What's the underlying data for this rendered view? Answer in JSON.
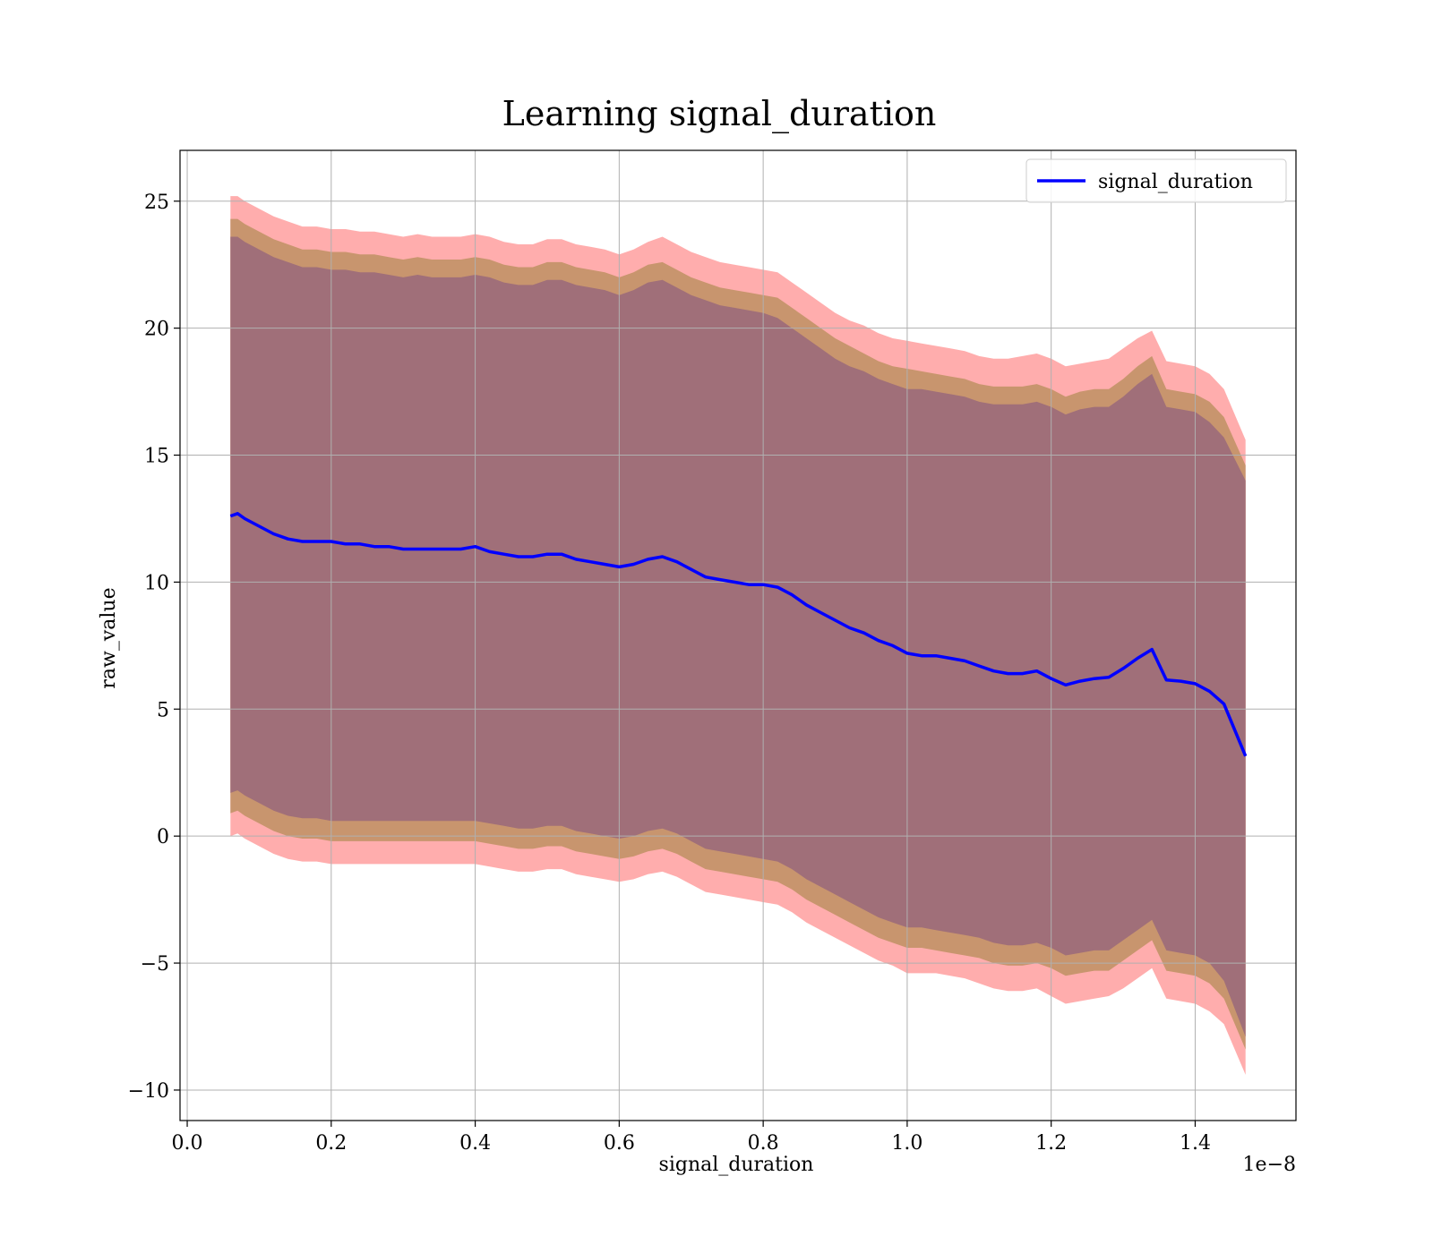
{
  "chart_data": {
    "type": "line",
    "title": "Learning signal_duration",
    "xlabel": "signal_duration",
    "ylabel": "raw_value",
    "x_offset_text": "1e−8",
    "x_tick_scale": 1e-08,
    "xlim": [
      -0.01,
      1.54
    ],
    "ylim": [
      -11.2,
      27.0
    ],
    "xticks": [
      0.0,
      0.2,
      0.4,
      0.6,
      0.8,
      1.0,
      1.2,
      1.4
    ],
    "xtick_labels": [
      "0.0",
      "0.2",
      "0.4",
      "0.6",
      "0.8",
      "1.0",
      "1.2",
      "1.4"
    ],
    "yticks": [
      -10,
      -5,
      0,
      5,
      10,
      15,
      20,
      25
    ],
    "ytick_labels": [
      "−10",
      "−5",
      "0",
      "5",
      "10",
      "15",
      "20",
      "25"
    ],
    "grid": true,
    "legend": {
      "placement": "top-right",
      "entries": [
        "signal_duration"
      ]
    },
    "colors": {
      "line": "#0000ff",
      "band_outer": "#ff9999",
      "band_middle": "#c8956e",
      "band_inner": "#a06f79",
      "grid": "#b0b0b0"
    },
    "x": [
      0.06,
      0.07,
      0.08,
      0.1,
      0.12,
      0.14,
      0.16,
      0.18,
      0.2,
      0.22,
      0.24,
      0.26,
      0.28,
      0.3,
      0.32,
      0.34,
      0.36,
      0.38,
      0.4,
      0.42,
      0.44,
      0.46,
      0.48,
      0.5,
      0.52,
      0.54,
      0.56,
      0.58,
      0.6,
      0.62,
      0.64,
      0.66,
      0.68,
      0.7,
      0.72,
      0.74,
      0.76,
      0.78,
      0.8,
      0.82,
      0.84,
      0.86,
      0.88,
      0.9,
      0.92,
      0.94,
      0.96,
      0.98,
      1.0,
      1.02,
      1.04,
      1.06,
      1.08,
      1.1,
      1.12,
      1.14,
      1.16,
      1.18,
      1.2,
      1.22,
      1.24,
      1.26,
      1.28,
      1.3,
      1.32,
      1.34,
      1.36,
      1.38,
      1.4,
      1.42,
      1.44,
      1.47
    ],
    "series": [
      {
        "name": "signal_duration",
        "values": [
          12.6,
          12.7,
          12.5,
          12.2,
          11.9,
          11.7,
          11.6,
          11.6,
          11.6,
          11.5,
          11.5,
          11.4,
          11.4,
          11.3,
          11.3,
          11.3,
          11.3,
          11.3,
          11.4,
          11.2,
          11.1,
          11.0,
          11.0,
          11.1,
          11.1,
          10.9,
          10.8,
          10.7,
          10.6,
          10.7,
          10.9,
          11.0,
          10.8,
          10.5,
          10.2,
          10.1,
          10.0,
          9.9,
          9.9,
          9.8,
          9.5,
          9.1,
          8.8,
          8.5,
          8.2,
          8.0,
          7.7,
          7.5,
          7.2,
          7.1,
          7.1,
          7.0,
          6.9,
          6.7,
          6.5,
          6.4,
          6.4,
          6.5,
          6.2,
          5.95,
          6.1,
          6.2,
          6.25,
          6.6,
          7.0,
          7.35,
          6.15,
          6.1,
          6.0,
          5.7,
          5.2,
          3.15
        ]
      }
    ],
    "bands": [
      {
        "level": "outer",
        "upper": [
          25.2,
          25.2,
          25.0,
          24.7,
          24.4,
          24.2,
          24.0,
          24.0,
          23.9,
          23.9,
          23.8,
          23.8,
          23.7,
          23.6,
          23.7,
          23.6,
          23.6,
          23.6,
          23.7,
          23.6,
          23.4,
          23.3,
          23.3,
          23.5,
          23.5,
          23.3,
          23.2,
          23.1,
          22.9,
          23.1,
          23.4,
          23.6,
          23.3,
          23.0,
          22.8,
          22.6,
          22.5,
          22.4,
          22.3,
          22.2,
          21.8,
          21.4,
          21.0,
          20.6,
          20.3,
          20.1,
          19.8,
          19.6,
          19.5,
          19.4,
          19.3,
          19.2,
          19.1,
          18.9,
          18.8,
          18.8,
          18.9,
          19.0,
          18.8,
          18.5,
          18.6,
          18.7,
          18.8,
          19.2,
          19.6,
          19.9,
          18.7,
          18.6,
          18.5,
          18.2,
          17.6,
          15.6
        ],
        "lower": [
          0.0,
          0.1,
          -0.1,
          -0.4,
          -0.7,
          -0.9,
          -1.0,
          -1.0,
          -1.1,
          -1.1,
          -1.1,
          -1.1,
          -1.1,
          -1.1,
          -1.1,
          -1.1,
          -1.1,
          -1.1,
          -1.1,
          -1.2,
          -1.3,
          -1.4,
          -1.4,
          -1.3,
          -1.3,
          -1.5,
          -1.6,
          -1.7,
          -1.8,
          -1.7,
          -1.5,
          -1.4,
          -1.6,
          -1.9,
          -2.2,
          -2.3,
          -2.4,
          -2.5,
          -2.6,
          -2.7,
          -3.0,
          -3.4,
          -3.7,
          -4.0,
          -4.3,
          -4.6,
          -4.9,
          -5.1,
          -5.4,
          -5.4,
          -5.4,
          -5.5,
          -5.6,
          -5.8,
          -6.0,
          -6.1,
          -6.1,
          -6.0,
          -6.3,
          -6.6,
          -6.5,
          -6.4,
          -6.3,
          -6.0,
          -5.6,
          -5.2,
          -6.4,
          -6.5,
          -6.6,
          -6.9,
          -7.4,
          -9.4
        ]
      },
      {
        "level": "middle",
        "upper": [
          24.3,
          24.3,
          24.1,
          23.8,
          23.5,
          23.3,
          23.1,
          23.1,
          23.0,
          23.0,
          22.9,
          22.9,
          22.8,
          22.7,
          22.8,
          22.7,
          22.7,
          22.7,
          22.8,
          22.7,
          22.5,
          22.4,
          22.4,
          22.6,
          22.6,
          22.4,
          22.3,
          22.2,
          22.0,
          22.2,
          22.5,
          22.6,
          22.3,
          22.0,
          21.8,
          21.6,
          21.5,
          21.4,
          21.3,
          21.2,
          20.8,
          20.4,
          20.0,
          19.6,
          19.3,
          19.0,
          18.7,
          18.5,
          18.4,
          18.3,
          18.2,
          18.1,
          18.0,
          17.8,
          17.7,
          17.7,
          17.7,
          17.8,
          17.6,
          17.3,
          17.5,
          17.6,
          17.6,
          18.0,
          18.5,
          18.9,
          17.6,
          17.5,
          17.4,
          17.1,
          16.5,
          14.6
        ],
        "lower": [
          0.9,
          1.0,
          0.8,
          0.5,
          0.2,
          0.0,
          -0.1,
          -0.1,
          -0.2,
          -0.2,
          -0.2,
          -0.2,
          -0.2,
          -0.2,
          -0.2,
          -0.2,
          -0.2,
          -0.2,
          -0.2,
          -0.3,
          -0.4,
          -0.5,
          -0.5,
          -0.4,
          -0.4,
          -0.6,
          -0.7,
          -0.8,
          -0.9,
          -0.8,
          -0.6,
          -0.5,
          -0.7,
          -1.0,
          -1.3,
          -1.4,
          -1.5,
          -1.6,
          -1.7,
          -1.8,
          -2.1,
          -2.5,
          -2.8,
          -3.1,
          -3.4,
          -3.7,
          -4.0,
          -4.2,
          -4.4,
          -4.4,
          -4.5,
          -4.6,
          -4.7,
          -4.8,
          -5.0,
          -5.1,
          -5.1,
          -5.0,
          -5.2,
          -5.5,
          -5.4,
          -5.3,
          -5.3,
          -4.9,
          -4.5,
          -4.1,
          -5.3,
          -5.4,
          -5.5,
          -5.8,
          -6.4,
          -8.4
        ]
      },
      {
        "level": "inner",
        "upper": [
          23.6,
          23.6,
          23.4,
          23.1,
          22.8,
          22.6,
          22.4,
          22.4,
          22.3,
          22.3,
          22.2,
          22.2,
          22.1,
          22.0,
          22.1,
          22.0,
          22.0,
          22.0,
          22.1,
          22.0,
          21.8,
          21.7,
          21.7,
          21.9,
          21.9,
          21.7,
          21.6,
          21.5,
          21.3,
          21.5,
          21.8,
          21.9,
          21.6,
          21.3,
          21.1,
          20.9,
          20.8,
          20.7,
          20.6,
          20.4,
          20.0,
          19.6,
          19.2,
          18.8,
          18.5,
          18.3,
          18.0,
          17.8,
          17.6,
          17.6,
          17.5,
          17.4,
          17.3,
          17.1,
          17.0,
          17.0,
          17.0,
          17.1,
          16.9,
          16.6,
          16.8,
          16.9,
          16.9,
          17.3,
          17.8,
          18.2,
          16.9,
          16.8,
          16.7,
          16.3,
          15.7,
          14.0
        ],
        "lower": [
          1.7,
          1.8,
          1.6,
          1.3,
          1.0,
          0.8,
          0.7,
          0.7,
          0.6,
          0.6,
          0.6,
          0.6,
          0.6,
          0.6,
          0.6,
          0.6,
          0.6,
          0.6,
          0.6,
          0.5,
          0.4,
          0.3,
          0.3,
          0.4,
          0.4,
          0.2,
          0.1,
          0.0,
          -0.1,
          0.0,
          0.2,
          0.3,
          0.1,
          -0.2,
          -0.5,
          -0.6,
          -0.7,
          -0.8,
          -0.9,
          -1.0,
          -1.3,
          -1.7,
          -2.0,
          -2.3,
          -2.6,
          -2.9,
          -3.2,
          -3.4,
          -3.6,
          -3.6,
          -3.7,
          -3.8,
          -3.9,
          -4.0,
          -4.2,
          -4.3,
          -4.3,
          -4.2,
          -4.4,
          -4.7,
          -4.6,
          -4.5,
          -4.5,
          -4.1,
          -3.7,
          -3.3,
          -4.5,
          -4.6,
          -4.7,
          -5.0,
          -5.7,
          -7.9
        ]
      }
    ]
  }
}
